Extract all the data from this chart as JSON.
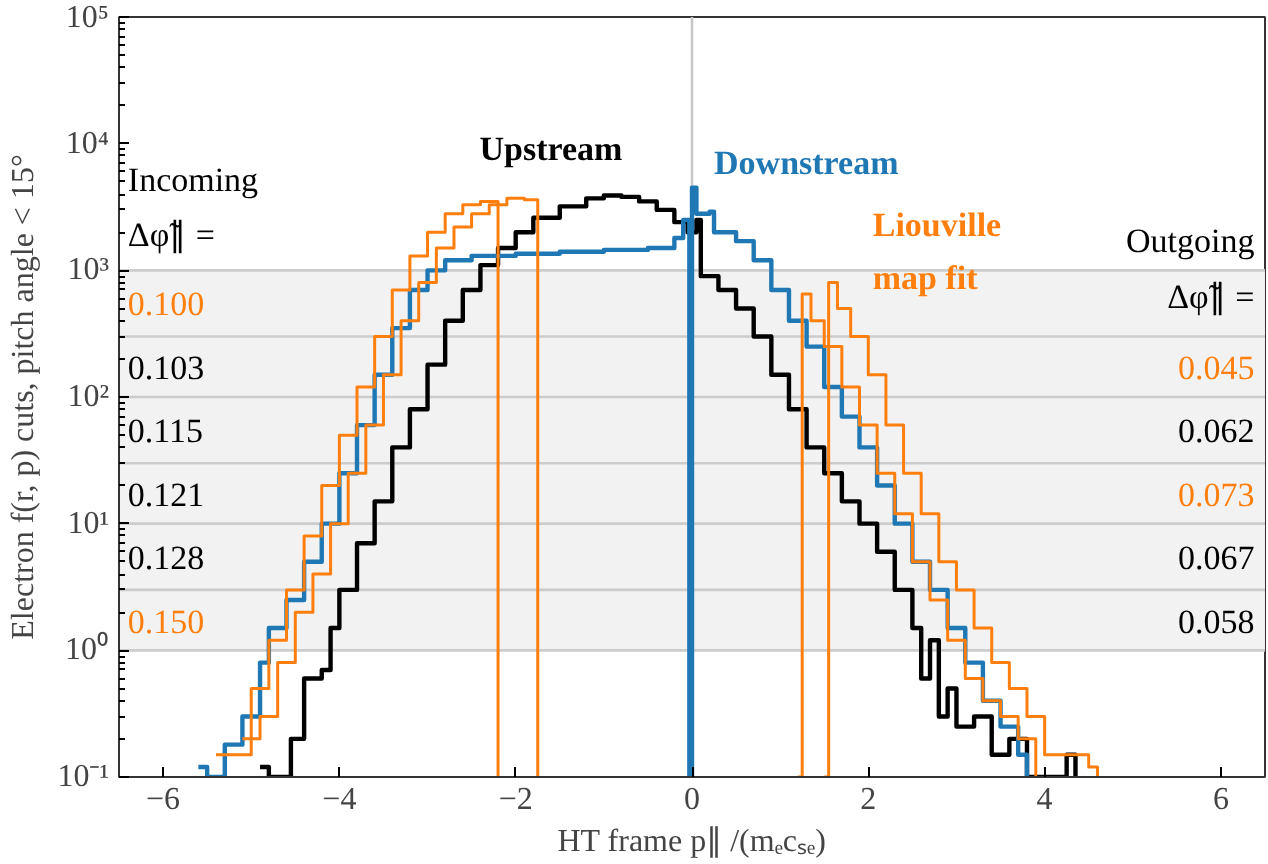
{
  "chart_data": {
    "type": "step",
    "xlabel": "HT frame p∥ /(mₑcₛₑ)",
    "ylabel": "Electron f(r, p) cuts, pitch angle < 15°",
    "log": "y",
    "grid": false,
    "xlim": [
      -6.5,
      6.5
    ],
    "xticks": [
      {
        "value": -6,
        "label": "−6"
      },
      {
        "value": -4,
        "label": "−4"
      },
      {
        "value": -2,
        "label": "−2"
      },
      0,
      2,
      4,
      6
    ],
    "ylim": [
      0.1,
      100000
    ],
    "yticks": [
      {
        "value": 0.1,
        "label": "10⁻¹"
      },
      {
        "value": 1,
        "label": "10⁰"
      },
      {
        "value": 10,
        "label": "10¹"
      },
      {
        "value": 100,
        "label": "10²"
      },
      {
        "value": 1000,
        "label": "10³"
      },
      {
        "value": 10000,
        "label": "10⁴"
      },
      {
        "value": 100000,
        "label": "10⁵"
      }
    ],
    "bands": [
      {
        "axis": "y",
        "from": 1,
        "to": 1000,
        "color": "#f2f2f2"
      }
    ],
    "ref_lines": [
      {
        "axis": "y",
        "value": 1000,
        "color": "#cccccc"
      },
      {
        "axis": "y",
        "value": 300,
        "color": "#cccccc"
      },
      {
        "axis": "y",
        "value": 100,
        "color": "#cccccc"
      },
      {
        "axis": "y",
        "value": 30,
        "color": "#cccccc"
      },
      {
        "axis": "y",
        "value": 10,
        "color": "#cccccc"
      },
      {
        "axis": "y",
        "value": 3,
        "color": "#cccccc"
      },
      {
        "axis": "y",
        "value": 1,
        "color": "#cccccc"
      },
      {
        "axis": "x",
        "value": 0,
        "color": "#c8c8c8"
      }
    ],
    "annotations": [
      "Incoming",
      "Δφ̃∥ =",
      "0.100",
      "0.103",
      "0.115",
      "0.121",
      "0.128",
      "0.150",
      "Outgoing",
      "Δφ̃∥ =",
      "0.045",
      "0.062",
      "0.073",
      "0.067",
      "0.058"
    ],
    "series": [
      {
        "name": "Upstream",
        "color": "#000000",
        "x": [
          -4.9,
          -4.8,
          -4.55,
          -4.4,
          -4.2,
          -4.1,
          -4.0,
          -3.8,
          -3.6,
          -3.4,
          -3.2,
          -3.0,
          -2.8,
          -2.6,
          -2.4,
          -2.2,
          -2.0,
          -1.8,
          -1.5,
          -1.2,
          -1.0,
          -0.8,
          -0.6,
          -0.4,
          -0.2,
          -0.05,
          0.05,
          0.1,
          0.3,
          0.5,
          0.7,
          0.9,
          1.1,
          1.3,
          1.5,
          1.7,
          1.9,
          2.1,
          2.3,
          2.5,
          2.6,
          2.7,
          2.8,
          2.9,
          3.0,
          3.2,
          3.4,
          3.6,
          3.8,
          4.25,
          4.35
        ],
        "values": [
          0.12,
          0.1,
          0.2,
          0.6,
          0.7,
          1.5,
          3,
          7,
          15,
          40,
          80,
          180,
          400,
          700,
          1100,
          1500,
          2000,
          2600,
          3200,
          3700,
          3900,
          3800,
          3500,
          3000,
          2400,
          2000,
          2500,
          900,
          700,
          500,
          300,
          150,
          80,
          40,
          25,
          15,
          10,
          6,
          3,
          1.5,
          0.6,
          1.2,
          0.3,
          0.5,
          0.25,
          0.3,
          0.15,
          0.2,
          0.1,
          0.15,
          0.1
        ]
      },
      {
        "name": "Downstream",
        "color": "#1f77b4",
        "x": [
          -5.6,
          -5.5,
          -5.3,
          -5.1,
          -4.9,
          -4.8,
          -4.6,
          -4.4,
          -4.2,
          -4.0,
          -3.8,
          -3.6,
          -3.4,
          -3.2,
          -3.0,
          -2.8,
          -2.5,
          -2.0,
          -1.5,
          -1.0,
          -0.5,
          -0.2,
          -0.1,
          -0.03,
          0.0,
          0.05,
          0.2,
          0.25,
          0.3,
          0.5,
          0.7,
          0.9,
          1.1,
          1.3,
          1.5,
          1.7,
          1.9,
          2.1,
          2.3,
          2.5,
          2.7,
          2.9,
          3.1,
          3.3,
          3.5,
          3.7,
          3.8
        ],
        "values": [
          0.12,
          0.1,
          0.18,
          0.3,
          0.8,
          1.5,
          2.5,
          5,
          10,
          25,
          60,
          150,
          350,
          700,
          1000,
          1200,
          1300,
          1350,
          1400,
          1450,
          1500,
          1800,
          2500,
          0.1,
          4500,
          2800,
          2900,
          2000,
          2000,
          1700,
          1200,
          700,
          400,
          250,
          120,
          70,
          40,
          20,
          10,
          5,
          3,
          1.5,
          0.8,
          0.4,
          0.25,
          0.15,
          0.1
        ]
      },
      {
        "name": "Liouville map fit",
        "color": "#ff7f0e",
        "x": [
          1.2,
          1.25,
          1.35,
          1.5,
          1.7,
          1.9,
          2.1,
          2.3,
          2.5,
          2.7,
          2.9,
          3.1,
          3.3,
          3.5,
          3.7,
          3.9
        ],
        "values": [
          0.1,
          650,
          400,
          250,
          120,
          60,
          25,
          12,
          5,
          2.5,
          1.2,
          0.6,
          0.4,
          0.3,
          0.2,
          0.1
        ]
      },
      {
        "color": "#ff7f0e",
        "x": [
          -5.4,
          -5.0,
          -4.8,
          -4.6,
          -4.4,
          -4.2,
          -4.0,
          -3.8,
          -3.6,
          -3.4,
          -3.2,
          -3.0,
          -2.8,
          -2.6,
          -2.4,
          -2.2
        ],
        "values": [
          0.15,
          0.5,
          1.2,
          3,
          8,
          20,
          50,
          120,
          300,
          700,
          1300,
          2000,
          2800,
          3300,
          3500,
          0.1
        ]
      },
      {
        "color": "#ff7f0e",
        "x": [
          -5.1,
          -4.9,
          -4.7,
          -4.5,
          -4.3,
          -4.1,
          -3.9,
          -3.7,
          -3.5,
          -3.3,
          -3.1,
          -2.9,
          -2.7,
          -2.5,
          -2.3,
          -2.1,
          -1.9,
          -1.75
        ],
        "values": [
          0.2,
          0.3,
          0.8,
          2,
          4,
          10,
          25,
          60,
          150,
          400,
          800,
          1500,
          2200,
          2800,
          3300,
          3700,
          3600,
          0.1
        ]
      },
      {
        "color": "#ff7f0e",
        "x": [
          1.5,
          1.55,
          1.65,
          1.8,
          2.0,
          2.2,
          2.4,
          2.6,
          2.8,
          3.0,
          3.2,
          3.4,
          3.6,
          3.8,
          4.0,
          4.5,
          4.6
        ],
        "values": [
          0.1,
          800,
          500,
          300,
          150,
          60,
          25,
          12,
          5,
          3,
          1.5,
          0.8,
          0.5,
          0.3,
          0.15,
          0.12,
          0.1
        ]
      }
    ]
  }
}
